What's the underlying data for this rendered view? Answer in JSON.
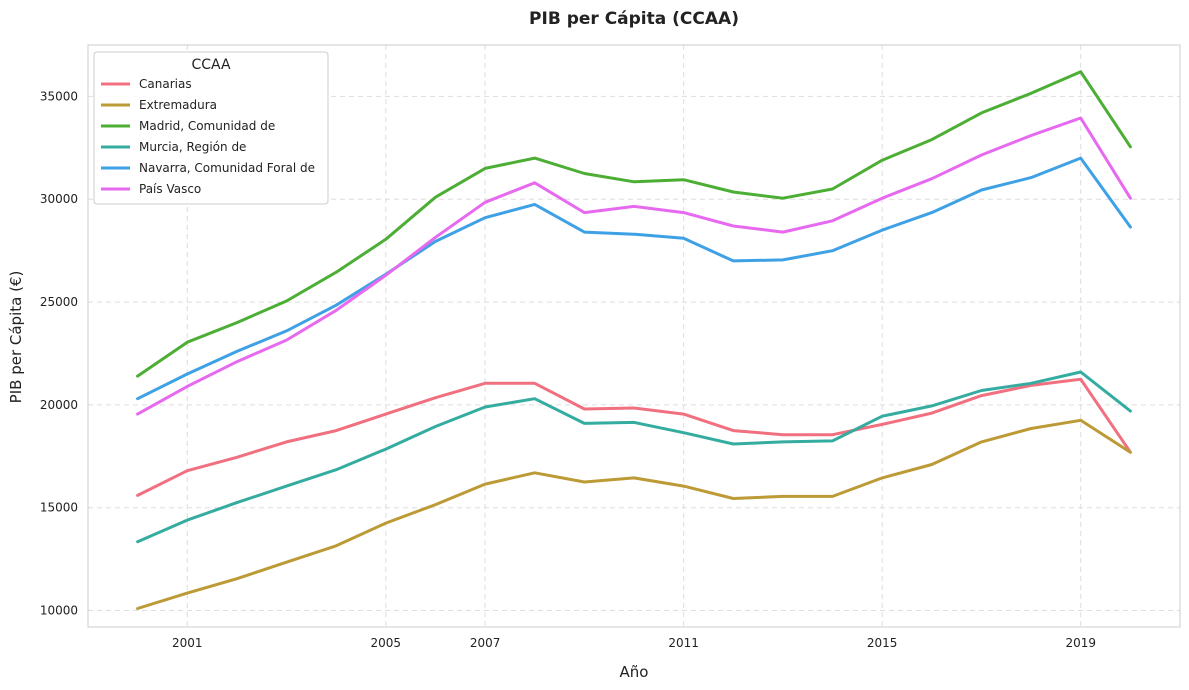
{
  "chart_data": {
    "type": "line",
    "title": "PIB per Cápita (CCAA)",
    "xlabel": "Año",
    "ylabel": "PIB per Cápita (€)",
    "x": [
      2000,
      2001,
      2002,
      2003,
      2004,
      2005,
      2006,
      2007,
      2008,
      2009,
      2010,
      2011,
      2012,
      2013,
      2014,
      2015,
      2016,
      2017,
      2018,
      2019,
      2020
    ],
    "xticks": [
      2001,
      2005,
      2007,
      2011,
      2015,
      2019
    ],
    "yticks": [
      10000,
      15000,
      20000,
      25000,
      30000,
      35000
    ],
    "xlim": [
      1999,
      2021
    ],
    "ylim": [
      9200,
      37500
    ],
    "grid": true,
    "legend": {
      "title": "CCAA",
      "position": "top-left"
    },
    "series": [
      {
        "name": "Canarias",
        "color": "#f07080",
        "values": [
          15600,
          16800,
          17450,
          18200,
          18750,
          19550,
          20350,
          21050,
          21050,
          19800,
          19850,
          19550,
          18750,
          18550,
          18550,
          19050,
          19600,
          20450,
          20950,
          21250,
          17700
        ]
      },
      {
        "name": "Extremadura",
        "color": "#bc9a35",
        "values": [
          10100,
          10850,
          11550,
          12350,
          13150,
          14250,
          15150,
          16150,
          16700,
          16250,
          16450,
          16050,
          15450,
          15550,
          15550,
          16450,
          17100,
          18200,
          18850,
          19250,
          17700
        ]
      },
      {
        "name": "Madrid, Comunidad de",
        "color": "#4dae35",
        "values": [
          21400,
          23050,
          24000,
          25050,
          26450,
          28050,
          30100,
          31500,
          32000,
          31250,
          30850,
          30950,
          30350,
          30050,
          30500,
          31900,
          32900,
          34200,
          35150,
          36200,
          32550
        ]
      },
      {
        "name": "Murcia, Región de",
        "color": "#35aca0",
        "values": [
          13350,
          14400,
          15250,
          16050,
          16850,
          17850,
          18950,
          19900,
          20300,
          19100,
          19150,
          18650,
          18100,
          18200,
          18250,
          19450,
          19950,
          20700,
          21050,
          21600,
          19700
        ]
      },
      {
        "name": "Navarra, Comunidad Foral de",
        "color": "#3ea1e6",
        "values": [
          20300,
          21500,
          22600,
          23600,
          24850,
          26350,
          27950,
          29100,
          29750,
          28400,
          28300,
          28100,
          27000,
          27050,
          27500,
          28500,
          29350,
          30450,
          31050,
          32000,
          28650
        ]
      },
      {
        "name": "País Vasco",
        "color": "#e769ef",
        "values": [
          19550,
          20900,
          22100,
          23150,
          24600,
          26300,
          28150,
          29850,
          30800,
          29350,
          29650,
          29350,
          28700,
          28400,
          28950,
          30050,
          31000,
          32150,
          33100,
          33950,
          30050
        ]
      }
    ]
  }
}
